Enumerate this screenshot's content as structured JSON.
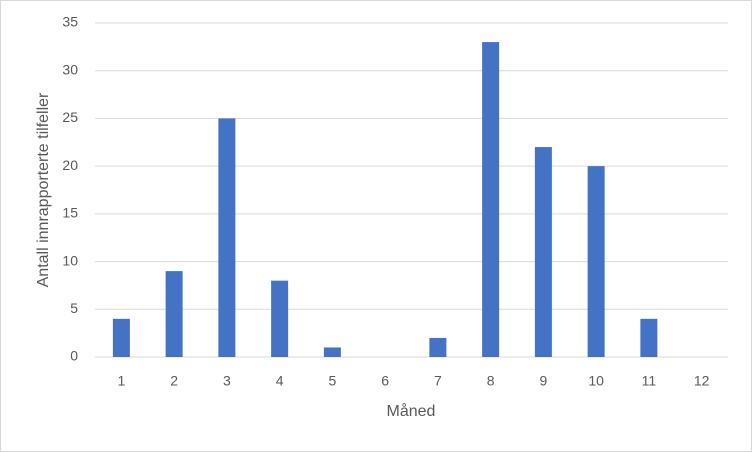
{
  "chart_data": {
    "type": "bar",
    "categories": [
      "1",
      "2",
      "3",
      "4",
      "5",
      "6",
      "7",
      "8",
      "9",
      "10",
      "11",
      "12"
    ],
    "values": [
      4,
      9,
      25,
      8,
      1,
      0,
      2,
      33,
      22,
      20,
      4,
      0
    ],
    "color": "#4472c4",
    "xlabel": "Måned",
    "ylabel": "Antall innrapporterte tilfeller",
    "ylim": [
      0,
      35
    ],
    "yticks": [
      0,
      5,
      10,
      15,
      20,
      25,
      30,
      35
    ],
    "grid": true
  }
}
